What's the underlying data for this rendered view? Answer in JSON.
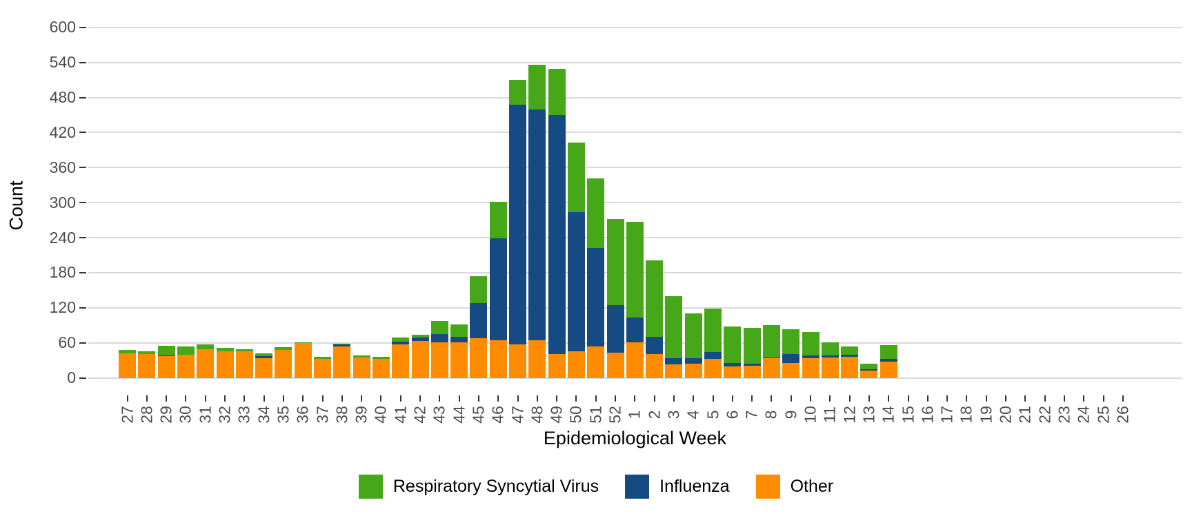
{
  "chart_data": {
    "type": "bar",
    "stacked": true,
    "title": "",
    "xlabel": "Epidemiological Week",
    "ylabel": "Count",
    "ylim": [
      0,
      600
    ],
    "y_ticks": [
      0,
      60,
      120,
      180,
      240,
      300,
      360,
      420,
      480,
      540,
      600
    ],
    "grid": "horizontal-major-only",
    "legend_position": "bottom-center",
    "categories": [
      "27",
      "28",
      "29",
      "30",
      "31",
      "32",
      "33",
      "34",
      "35",
      "36",
      "37",
      "38",
      "39",
      "40",
      "41",
      "42",
      "43",
      "44",
      "45",
      "46",
      "47",
      "48",
      "49",
      "50",
      "51",
      "52",
      "1",
      "2",
      "3",
      "4",
      "5",
      "6",
      "7",
      "8",
      "9",
      "10",
      "11",
      "12",
      "13",
      "14",
      "15",
      "16",
      "17",
      "18",
      "19",
      "20",
      "21",
      "22",
      "23",
      "24",
      "25",
      "26"
    ],
    "stack_order_bottom_to_top": [
      "Other",
      "Influenza",
      "Respiratory Syncytial Virus"
    ],
    "series": [
      {
        "name": "Respiratory Syncytial Virus",
        "color": "#46a718",
        "values": [
          6,
          5,
          16,
          14,
          8,
          6,
          4,
          5,
          5,
          1,
          4,
          1,
          4,
          3,
          7,
          5,
          22,
          22,
          46,
          62,
          42,
          77,
          79,
          119,
          118,
          147,
          164,
          131,
          106,
          76,
          75,
          63,
          62,
          55,
          42,
          40,
          23,
          14,
          9,
          23,
          0,
          0,
          0,
          0,
          0,
          0,
          0,
          0,
          0,
          0,
          0,
          0
        ]
      },
      {
        "name": "Influenza",
        "color": "#164a82",
        "values": [
          0,
          0,
          2,
          0,
          0,
          0,
          0,
          3,
          0,
          0,
          0,
          3,
          0,
          0,
          5,
          6,
          14,
          9,
          60,
          175,
          411,
          394,
          409,
          238,
          169,
          82,
          42,
          29,
          11,
          10,
          11,
          5,
          3,
          1,
          15,
          5,
          3,
          4,
          2,
          5,
          0,
          0,
          0,
          0,
          0,
          0,
          0,
          0,
          0,
          0,
          0,
          0
        ]
      },
      {
        "name": "Other",
        "color": "#ff8c00",
        "values": [
          42,
          41,
          37,
          40,
          49,
          46,
          45,
          34,
          48,
          60,
          32,
          54,
          35,
          33,
          57,
          63,
          61,
          61,
          68,
          64,
          57,
          65,
          41,
          46,
          54,
          43,
          61,
          41,
          23,
          24,
          33,
          20,
          21,
          34,
          26,
          34,
          35,
          36,
          13,
          28,
          0,
          0,
          0,
          0,
          0,
          0,
          0,
          0,
          0,
          0,
          0,
          0
        ]
      }
    ],
    "colors": {
      "grid": "#d9d9d9",
      "tick_mark": "#333333",
      "tick_label": "#4d4d4d",
      "axis_title": "#000000",
      "background": "#ffffff"
    }
  }
}
